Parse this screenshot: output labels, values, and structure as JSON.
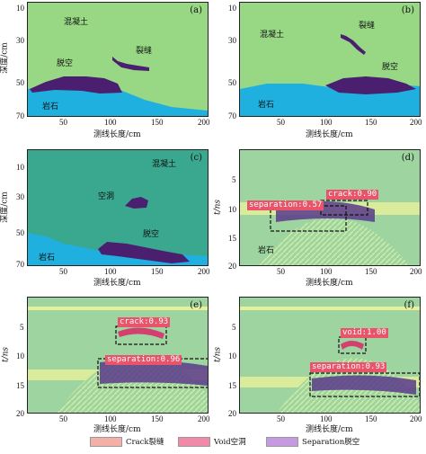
{
  "colors": {
    "concrete": "#98d885",
    "concrete_c": "#3aa88e",
    "rock": "#1fb0e0",
    "defect": "#4b1f70",
    "detect": "#e8546a",
    "gpr_bg": "#9ed4a0"
  },
  "panels": {
    "a": {
      "label": "(a)",
      "concrete": "混凝土",
      "crack": "裂缝",
      "sep": "脱空",
      "rock": "岩石"
    },
    "b": {
      "label": "(b)",
      "concrete": "混凝土",
      "crack": "裂缝",
      "sep": "脱空",
      "rock": "岩石"
    },
    "c": {
      "label": "(c)",
      "concrete": "混凝土",
      "void": "空洞",
      "sep": "脱空",
      "rock": "岩石"
    },
    "d": {
      "label": "(d)",
      "det1": "crack:0.90",
      "det2": "separation:0.57",
      "rock": "岩石"
    },
    "e": {
      "label": "(e)",
      "det1": "crack:0.93",
      "det2": "separation:0.96"
    },
    "f": {
      "label": "(f)",
      "det1": "void:1.00",
      "det2": "separation:0.93"
    }
  },
  "axes": {
    "xlabel": "测线长度/cm",
    "ylabel_depth": "深度/cm",
    "ylabel_time": "t/ns",
    "x_ticks": [
      "50",
      "100",
      "150",
      "200"
    ],
    "depth_ticks": [
      "10",
      "30",
      "50",
      "70"
    ],
    "time_ticks": [
      "5",
      "10",
      "15",
      "20"
    ]
  },
  "legend": {
    "crack": "Crack裂缝",
    "void": "Void空洞",
    "separation": "Separation脱空"
  }
}
